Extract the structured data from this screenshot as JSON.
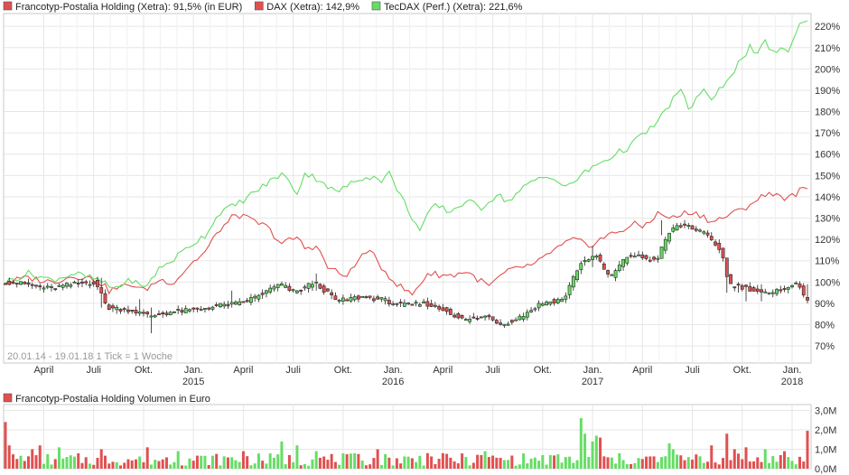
{
  "chart_data": [
    {
      "type": "candlestick",
      "legend": [
        {
          "label": "Francotyp-Postalia Holding (Xetra): 91,5% (in EUR)",
          "color": "#e05050"
        },
        {
          "label": "DAX (Xetra): 142,9%",
          "color": "#e05050"
        },
        {
          "label": "TecDAX (Perf.) (Xetra): 221,6%",
          "color": "#66dd66"
        }
      ],
      "legend_position": "top-left",
      "info_label": "20.01.14 - 19.01.18   1 Tick = 1 Woche",
      "y_axis": {
        "position": "right",
        "range": [
          62,
          226
        ],
        "ticks": [
          "70%",
          "80%",
          "90%",
          "100%",
          "110%",
          "120%",
          "130%",
          "140%",
          "150%",
          "160%",
          "170%",
          "180%",
          "190%",
          "200%",
          "210%",
          "220%"
        ],
        "tick_values": [
          70,
          80,
          90,
          100,
          110,
          120,
          130,
          140,
          150,
          160,
          170,
          180,
          190,
          200,
          210,
          220
        ]
      },
      "x_axis": {
        "range_weeks": [
          0,
          209
        ],
        "month_ticks": [
          {
            "label": "April",
            "week": 10
          },
          {
            "label": "Juli",
            "week": 23
          },
          {
            "label": "Okt.",
            "week": 36
          },
          {
            "label": "Jan.",
            "year": "2015",
            "week": 49
          },
          {
            "label": "April",
            "week": 62
          },
          {
            "label": "Juli",
            "week": 75
          },
          {
            "label": "Okt.",
            "week": 88
          },
          {
            "label": "Jan.",
            "year": "2016",
            "week": 101
          },
          {
            "label": "April",
            "week": 114
          },
          {
            "label": "Juli",
            "week": 127
          },
          {
            "label": "Okt.",
            "week": 140
          },
          {
            "label": "Jan.",
            "year": "2017",
            "week": 153
          },
          {
            "label": "April",
            "week": 166
          },
          {
            "label": "Juli",
            "week": 179
          },
          {
            "label": "Okt.",
            "week": 192
          },
          {
            "label": "Jan.",
            "year": "2018",
            "week": 205
          }
        ]
      },
      "grid": true,
      "series": [
        {
          "name": "Francotyp-Postalia Holding (Xetra)",
          "kind": "candles",
          "up_color": "#66dd66",
          "down_color": "#e05050",
          "keypoints": [
            [
              0,
              100
            ],
            [
              6,
              99
            ],
            [
              12,
              97
            ],
            [
              18,
              99
            ],
            [
              24,
              100
            ],
            [
              27,
              88
            ],
            [
              33,
              87
            ],
            [
              38,
              84
            ],
            [
              44,
              86
            ],
            [
              50,
              87
            ],
            [
              56,
              89
            ],
            [
              62,
              90
            ],
            [
              68,
              95
            ],
            [
              72,
              99
            ],
            [
              76,
              95
            ],
            [
              81,
              100
            ],
            [
              87,
              91
            ],
            [
              93,
              93
            ],
            [
              98,
              92
            ],
            [
              104,
              89
            ],
            [
              110,
              90
            ],
            [
              116,
              86
            ],
            [
              120,
              82
            ],
            [
              126,
              84
            ],
            [
              130,
              80
            ],
            [
              135,
              84
            ],
            [
              140,
              90
            ],
            [
              146,
              92
            ],
            [
              150,
              108
            ],
            [
              154,
              113
            ],
            [
              158,
              102
            ],
            [
              163,
              113
            ],
            [
              170,
              110
            ],
            [
              174,
              125
            ],
            [
              178,
              127
            ],
            [
              183,
              122
            ],
            [
              187,
              115
            ],
            [
              189,
              99
            ],
            [
              194,
              97
            ],
            [
              200,
              94
            ],
            [
              204,
              98
            ],
            [
              207,
              99
            ],
            [
              209,
              92
            ]
          ],
          "highlights": [
            [
              25,
              88,
              102
            ],
            [
              35,
              84,
              92
            ],
            [
              38,
              76,
              88
            ],
            [
              59,
              88,
              96
            ],
            [
              81,
              96,
              104
            ],
            [
              153,
              107,
              117
            ],
            [
              171,
              122,
              129
            ],
            [
              188,
              95,
              110
            ],
            [
              191,
              95,
              100
            ],
            [
              193,
              91,
              99
            ],
            [
              197,
              91,
              99
            ],
            [
              209,
              90,
              99
            ]
          ]
        },
        {
          "name": "DAX (Xetra)",
          "kind": "line",
          "color": "#e05050",
          "keypoints": [
            [
              0,
              100
            ],
            [
              6,
              102
            ],
            [
              12,
              100
            ],
            [
              18,
              103
            ],
            [
              24,
              101
            ],
            [
              27,
              96
            ],
            [
              33,
              99
            ],
            [
              36,
              96
            ],
            [
              40,
              101
            ],
            [
              44,
              100
            ],
            [
              48,
              108
            ],
            [
              52,
              114
            ],
            [
              56,
              125
            ],
            [
              58,
              128
            ],
            [
              60,
              132
            ],
            [
              64,
              129
            ],
            [
              68,
              126
            ],
            [
              72,
              118
            ],
            [
              76,
              121
            ],
            [
              78,
              116
            ],
            [
              81,
              117
            ],
            [
              84,
              107
            ],
            [
              88,
              103
            ],
            [
              90,
              105
            ],
            [
              94,
              115
            ],
            [
              96,
              112
            ],
            [
              98,
              107
            ],
            [
              102,
              99
            ],
            [
              106,
              94
            ],
            [
              110,
              104
            ],
            [
              116,
              103
            ],
            [
              120,
              105
            ],
            [
              126,
              98
            ],
            [
              130,
              104
            ],
            [
              134,
              107
            ],
            [
              138,
              108
            ],
            [
              142,
              114
            ],
            [
              148,
              120
            ],
            [
              152,
              117
            ],
            [
              156,
              121
            ],
            [
              160,
              124
            ],
            [
              164,
              127
            ],
            [
              166,
              126
            ],
            [
              170,
              132
            ],
            [
              174,
              130
            ],
            [
              178,
              133
            ],
            [
              182,
              131
            ],
            [
              184,
              128
            ],
            [
              188,
              131
            ],
            [
              192,
              134
            ],
            [
              196,
              139
            ],
            [
              200,
              142
            ],
            [
              204,
              139
            ],
            [
              207,
              143
            ],
            [
              209,
              143
            ]
          ]
        },
        {
          "name": "TecDAX (Perf.) (Xetra)",
          "kind": "line",
          "color": "#66dd66",
          "keypoints": [
            [
              0,
              100
            ],
            [
              6,
              104
            ],
            [
              12,
              101
            ],
            [
              18,
              104
            ],
            [
              24,
              101
            ],
            [
              28,
              97
            ],
            [
              33,
              101
            ],
            [
              36,
              97
            ],
            [
              40,
              106
            ],
            [
              44,
              111
            ],
            [
              48,
              117
            ],
            [
              52,
              122
            ],
            [
              56,
              133
            ],
            [
              60,
              136
            ],
            [
              64,
              141
            ],
            [
              68,
              146
            ],
            [
              72,
              151
            ],
            [
              76,
              142
            ],
            [
              78,
              151
            ],
            [
              82,
              148
            ],
            [
              86,
              142
            ],
            [
              90,
              146
            ],
            [
              94,
              150
            ],
            [
              98,
              148
            ],
            [
              100,
              151
            ],
            [
              104,
              137
            ],
            [
              108,
              124
            ],
            [
              110,
              131
            ],
            [
              112,
              136
            ],
            [
              116,
              133
            ],
            [
              120,
              138
            ],
            [
              124,
              135
            ],
            [
              128,
              141
            ],
            [
              131,
              138
            ],
            [
              135,
              144
            ],
            [
              138,
              148
            ],
            [
              142,
              150
            ],
            [
              146,
              144
            ],
            [
              150,
              150
            ],
            [
              154,
              155
            ],
            [
              158,
              159
            ],
            [
              162,
              163
            ],
            [
              166,
              169
            ],
            [
              170,
              175
            ],
            [
              174,
              186
            ],
            [
              176,
              190
            ],
            [
              178,
              181
            ],
            [
              182,
              191
            ],
            [
              184,
              184
            ],
            [
              186,
              190
            ],
            [
              190,
              200
            ],
            [
              192,
              205
            ],
            [
              194,
              210
            ],
            [
              196,
              206
            ],
            [
              198,
              213
            ],
            [
              200,
              208
            ],
            [
              204,
              209
            ],
            [
              207,
              221
            ],
            [
              209,
              222
            ]
          ]
        }
      ]
    },
    {
      "type": "bar",
      "legend": [
        {
          "label": "Francotyp-Postalia Holding Volumen in Euro",
          "color": "#e05050"
        }
      ],
      "y_axis": {
        "position": "right",
        "range": [
          0,
          3.3
        ],
        "ticks": [
          "0,0M",
          "1,0M",
          "2,0M",
          "3,0M"
        ],
        "tick_values": [
          0,
          1,
          2,
          3
        ]
      },
      "up_color": "#66dd66",
      "down_color": "#e05050",
      "spikes": [
        [
          0,
          2.4
        ],
        [
          1,
          1.2
        ],
        [
          7,
          1.0
        ],
        [
          9,
          1.2
        ],
        [
          14,
          1.1
        ],
        [
          25,
          1.0
        ],
        [
          37,
          1.1
        ],
        [
          45,
          0.9
        ],
        [
          62,
          0.9
        ],
        [
          72,
          1.4
        ],
        [
          76,
          1.2
        ],
        [
          81,
          0.9
        ],
        [
          97,
          1.0
        ],
        [
          110,
          0.8
        ],
        [
          125,
          0.9
        ],
        [
          150,
          2.6
        ],
        [
          151,
          1.8
        ],
        [
          153,
          1.4
        ],
        [
          154,
          1.7
        ],
        [
          155,
          1.6
        ],
        [
          173,
          1.3
        ],
        [
          174,
          1.0
        ],
        [
          184,
          1.2
        ],
        [
          188,
          1.8
        ],
        [
          190,
          1.0
        ],
        [
          193,
          1.1
        ],
        [
          198,
          1.0
        ],
        [
          203,
          0.9
        ],
        [
          209,
          1.95
        ]
      ]
    }
  ]
}
